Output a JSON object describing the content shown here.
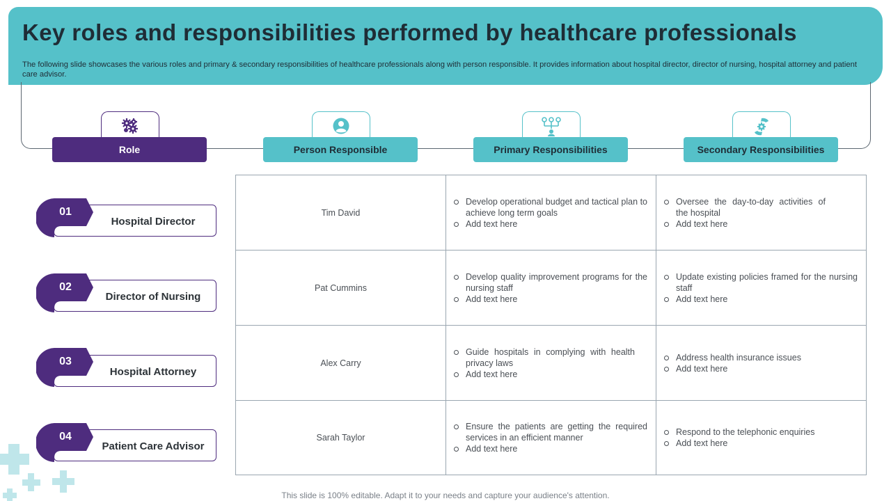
{
  "header": {
    "title": "Key roles and responsibilities performed by healthcare professionals",
    "subtitle": "The following slide showcases the various roles and primary & secondary responsibilities of healthcare professionals along with person responsible. It provides information about hospital director, director of nursing, hospital attorney and patient care advisor."
  },
  "columns": [
    {
      "label": "Role",
      "icon": "gears-icon"
    },
    {
      "label": "Person Responsible",
      "icon": "person-icon"
    },
    {
      "label": "Primary Responsibilities",
      "icon": "hierarchy-icon"
    },
    {
      "label": "Secondary Responsibilities",
      "icon": "hand-gear-icon"
    }
  ],
  "roles": [
    {
      "number": "01",
      "title": "Hospital Director"
    },
    {
      "number": "02",
      "title": "Director of Nursing"
    },
    {
      "number": "03",
      "title": "Hospital Attorney"
    },
    {
      "number": "04",
      "title": "Patient Care Advisor"
    }
  ],
  "table": [
    {
      "person": "Tim David",
      "primary": [
        "Develop operational budget and tactical plan to achieve long term goals",
        "Add text here"
      ],
      "secondary": [
        "Oversee the day-to-day activities of the hospital",
        "Add text here"
      ]
    },
    {
      "person": "Pat Cummins",
      "primary": [
        "Develop quality improvement programs for the nursing staff",
        "Add text here"
      ],
      "secondary": [
        "Update existing policies framed for the nursing staff",
        "Add text here"
      ]
    },
    {
      "person": "Alex Carry",
      "primary": [
        "Guide hospitals in complying with health privacy laws",
        "Add text here"
      ],
      "secondary": [
        "Address health insurance issues",
        "Add text here"
      ]
    },
    {
      "person": "Sarah Taylor",
      "primary": [
        "Ensure the patients are getting the required services in an efficient manner",
        "Add text here"
      ],
      "secondary": [
        "Respond to the telephonic enquiries",
        "Add text here"
      ]
    }
  ],
  "footer": "This slide is 100% editable. Adapt it to your needs and capture your audience's attention.",
  "colors": {
    "teal": "#55c1c9",
    "purple": "#4e2c7e",
    "dark_text": "#1f2d36"
  }
}
